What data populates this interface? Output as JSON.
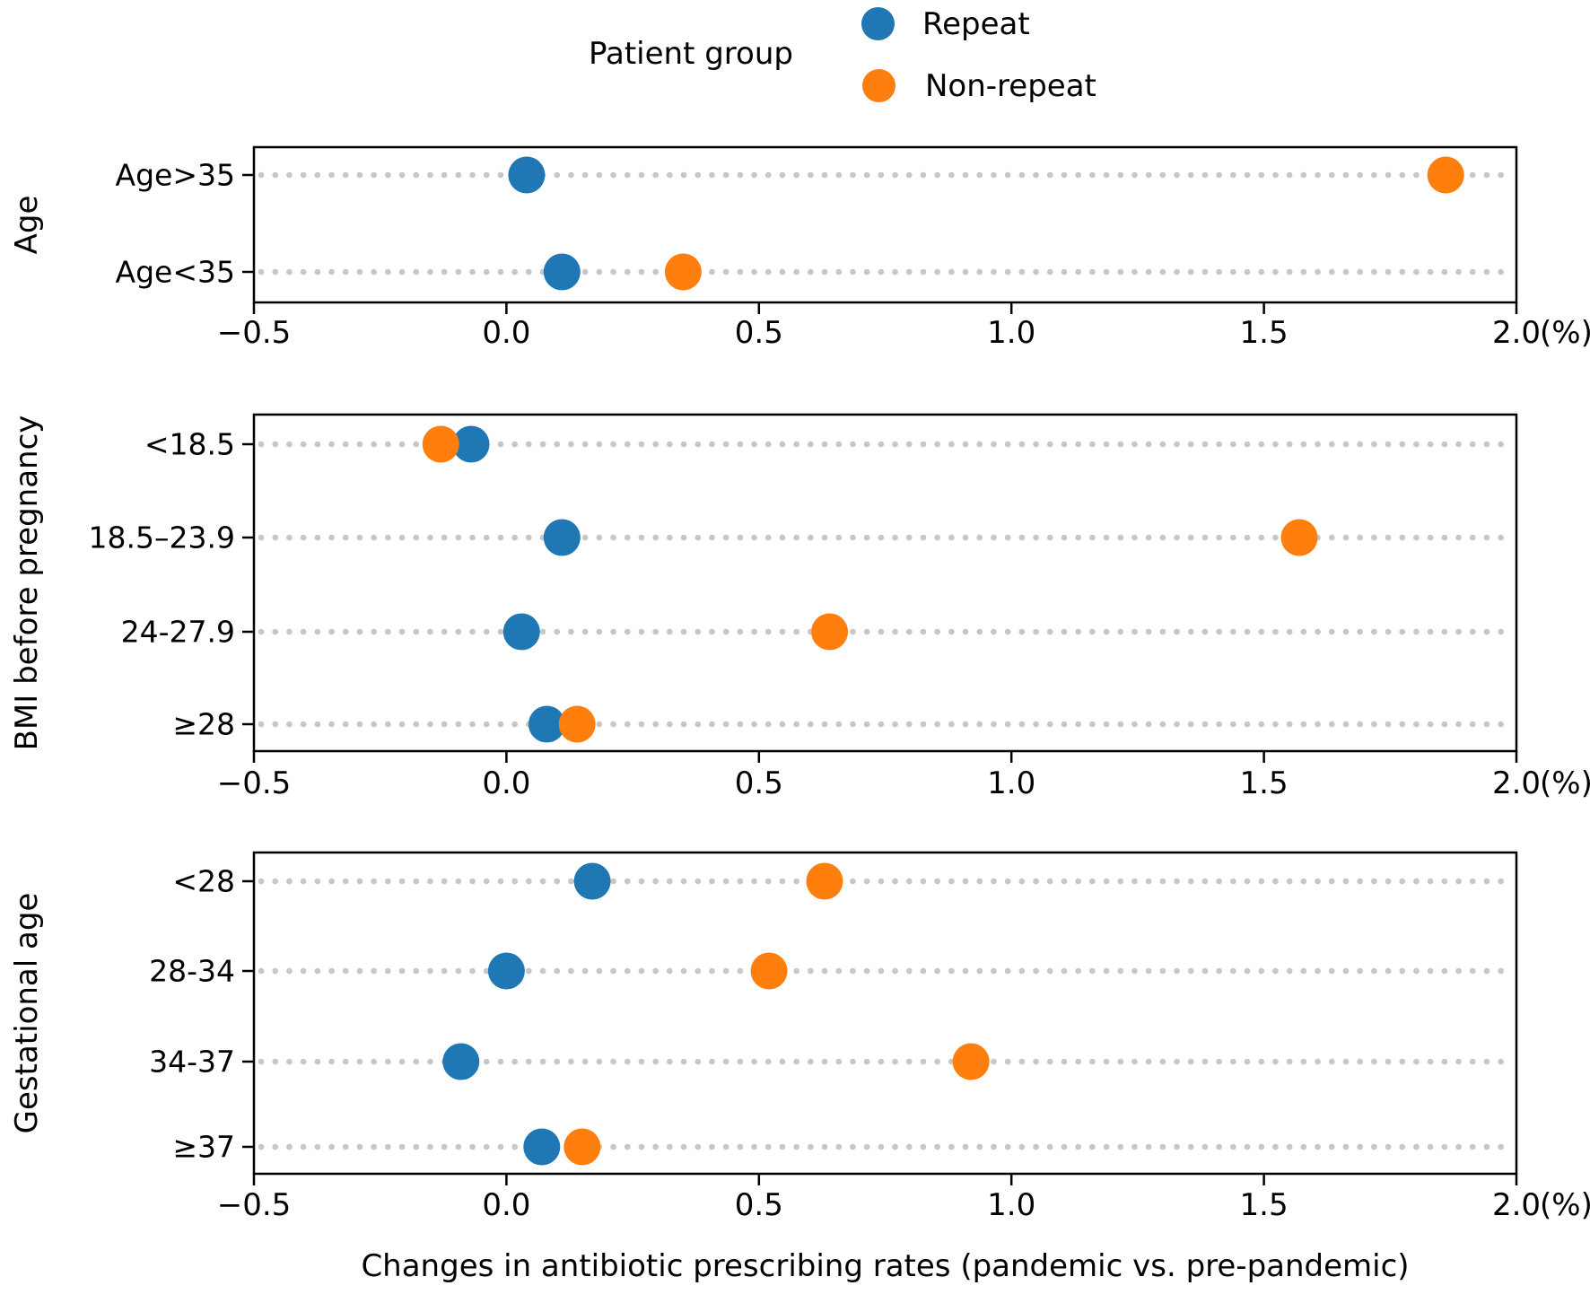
{
  "legend": {
    "title": "Patient group",
    "items": [
      {
        "label": "Repeat",
        "color": "#1f77b4"
      },
      {
        "label": "Non-repeat",
        "color": "#ff7f0e"
      }
    ]
  },
  "chart_data": {
    "type": "scatter",
    "variant": "dot-plot",
    "xlabel": "Changes in antibiotic prescribing rates (pandemic vs. pre-pandemic)",
    "x_unit_label": "(%)",
    "xlim": [
      -0.5,
      2.0
    ],
    "xtick_values": [
      -0.5,
      0.0,
      0.5,
      1.0,
      1.5,
      2.0
    ],
    "xtick_labels": [
      "−0.5",
      "0.0",
      "0.5",
      "1.0",
      "1.5",
      "2.0"
    ],
    "grid": "dotted horizontal lines per category",
    "legend_position": "top",
    "series_names": [
      "Repeat",
      "Non-repeat"
    ],
    "series_colors": {
      "Repeat": "#1f77b4",
      "Non-repeat": "#ff7f0e"
    },
    "gridline_color": "#c7c7c7",
    "axis_color": "#000000",
    "panels": [
      {
        "group_label": "Age",
        "categories": [
          "Age>35",
          "Age<35"
        ],
        "series": [
          {
            "name": "Repeat",
            "values": [
              0.04,
              0.11
            ]
          },
          {
            "name": "Non-repeat",
            "values": [
              1.86,
              0.35
            ]
          }
        ]
      },
      {
        "group_label": "BMI before pregnancy",
        "categories": [
          "<18.5",
          "18.5–23.9",
          "24-27.9",
          "≥28"
        ],
        "series": [
          {
            "name": "Repeat",
            "values": [
              -0.07,
              0.11,
              0.03,
              0.08
            ]
          },
          {
            "name": "Non-repeat",
            "values": [
              -0.13,
              1.57,
              0.64,
              0.14
            ]
          }
        ]
      },
      {
        "group_label": "Gestational age",
        "categories": [
          "<28",
          "28-34",
          "34-37",
          "≥37"
        ],
        "series": [
          {
            "name": "Repeat",
            "values": [
              0.17,
              0.0,
              -0.09,
              0.07
            ]
          },
          {
            "name": "Non-repeat",
            "values": [
              0.63,
              0.52,
              0.92,
              0.15
            ]
          }
        ]
      }
    ]
  }
}
